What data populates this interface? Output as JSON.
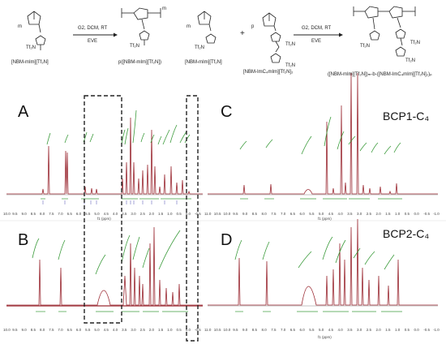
{
  "scheme_left": {
    "monomer_prefix": "m",
    "conditions_top": "G2, DCM, RT",
    "conditions_bottom": "EVE",
    "monomer_label": "[NBM-mIm][Tf₂N]",
    "polymer_label": "p([NBM-mIm][Tf₂N])",
    "polymer_subscript": "m",
    "anion": "Tf₂N"
  },
  "scheme_right": {
    "monomer1_prefix": "m",
    "plus": "+",
    "monomer2_prefix": "p",
    "conditions_top": "G2, DCM, RT",
    "conditions_bottom": "EVE",
    "monomer1_label": "[NBM-mIm][Tf₂N]",
    "monomer2_label": "[NBM-ImC₄mIm][Tf₂N]₂",
    "product_label": "([NBM-mIm][Tf₂N])ₘ-b-([NBM-ImC₄mIm][Tf₂N]₂)ₚ",
    "anion": "Tf₂N"
  },
  "panels": {
    "A": {
      "letter": "A"
    },
    "B": {
      "letter": "B"
    },
    "C": {
      "letter": "C",
      "sample": "BCP1-C₄"
    },
    "D": {
      "letter": "D",
      "sample": "BCP2-C₄"
    }
  },
  "axis_unit_label": "f1 (ppm)",
  "left_axis_ticks": [
    "10.0",
    "9.5",
    "9.0",
    "8.5",
    "8.0",
    "7.5",
    "7.0",
    "6.5",
    "6.0",
    "5.5",
    "5.0",
    "4.5",
    "4.0",
    "3.5",
    "3.0",
    "2.5",
    "2.0",
    "1.5",
    "1.0",
    "0.5",
    "0.0",
    "-0.5"
  ],
  "right_axis_ticks": [
    "11.0",
    "10.5",
    "10.0",
    "9.5",
    "9.0",
    "8.5",
    "8.0",
    "7.5",
    "7.0",
    "6.5",
    "6.0",
    "5.5",
    "5.0",
    "4.5",
    "4.0",
    "3.5",
    "3.0",
    "2.5",
    "2.0",
    "1.5",
    "1.0",
    "0.5",
    "0.0",
    "-0.5",
    "-1.0"
  ],
  "colors": {
    "spectrum": "#9b2a33",
    "integral": "#3b9b3b",
    "axis": "#888888",
    "box": "#222222"
  }
}
